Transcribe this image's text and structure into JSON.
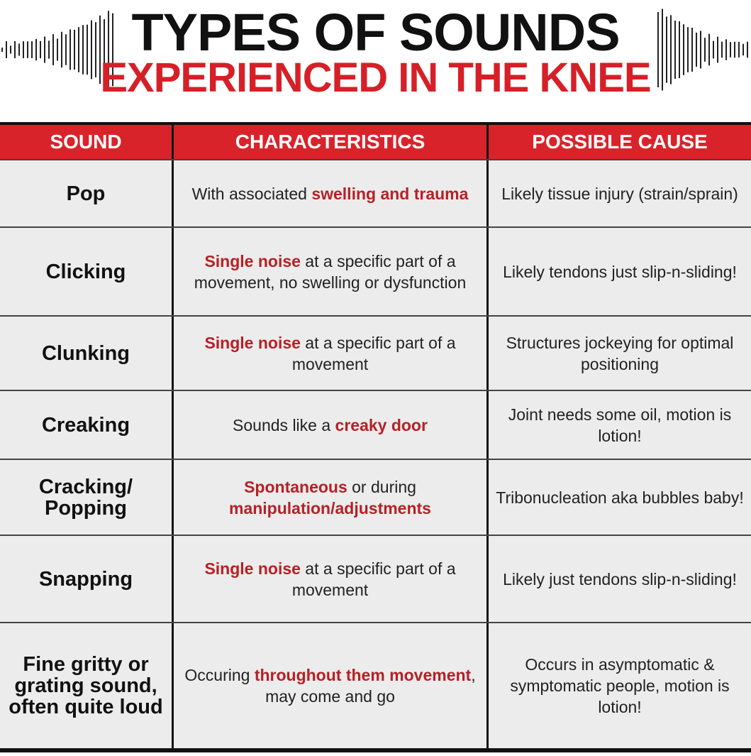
{
  "title": {
    "line1": "TYPES OF SOUNDS",
    "line2": "EXPERIENCED IN THE KNEE"
  },
  "colors": {
    "accent": "#d9232a",
    "highlight_text": "#b72025",
    "row_bg": "#ececec"
  },
  "columns": [
    "SOUND",
    "CHARACTERISTICS",
    "POSSIBLE CAUSE"
  ],
  "rows": [
    {
      "sound": "Pop",
      "char_parts": [
        {
          "text": "With associated ",
          "hl": false
        },
        {
          "text": "swelling and trauma",
          "hl": true
        }
      ],
      "cause": "Likely tissue injury (strain/sprain)"
    },
    {
      "sound": "Clicking",
      "char_parts": [
        {
          "text": "Single noise",
          "hl": true
        },
        {
          "text": " at a specific part of a movement, no swelling or dysfunction",
          "hl": false
        }
      ],
      "cause": "Likely tendons just slip-n-sliding!"
    },
    {
      "sound": "Clunking",
      "char_parts": [
        {
          "text": "Single noise",
          "hl": true
        },
        {
          "text": " at a specific part of a movement",
          "hl": false
        }
      ],
      "cause": "Structures jockeying for optimal positioning"
    },
    {
      "sound": "Creaking",
      "char_parts": [
        {
          "text": "Sounds like a ",
          "hl": false
        },
        {
          "text": "creaky door",
          "hl": true
        }
      ],
      "cause": "Joint needs some oil, motion is lotion!"
    },
    {
      "sound": "Cracking/ Popping",
      "char_parts": [
        {
          "text": "Spontaneous",
          "hl": true
        },
        {
          "text": " or during ",
          "hl": false
        },
        {
          "text": "manipulation/adjustments",
          "hl": true
        }
      ],
      "cause": "Tribonucleation aka bubbles baby!"
    },
    {
      "sound": "Snapping",
      "char_parts": [
        {
          "text": "Single noise",
          "hl": true
        },
        {
          "text": " at a specific part of a movement",
          "hl": false
        }
      ],
      "cause": "Likely just tendons slip-n-sliding!"
    },
    {
      "sound": "Fine gritty or grating sound, often quite loud",
      "char_parts": [
        {
          "text": "Occuring ",
          "hl": false
        },
        {
          "text": "throughout them movement",
          "hl": true
        },
        {
          "text": ", may come and go",
          "hl": false
        }
      ],
      "cause": "Occurs in asymptomatic & symptomatic people, motion is lotion!"
    }
  ]
}
